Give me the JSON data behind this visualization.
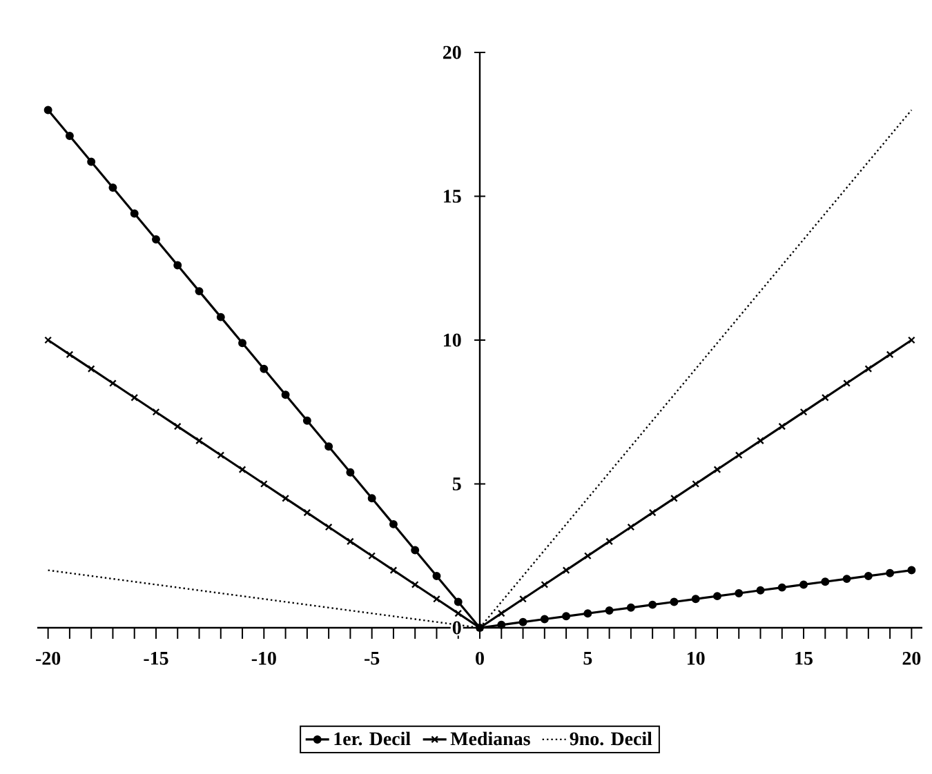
{
  "chart_data": {
    "type": "line",
    "x": [
      -20,
      -19,
      -18,
      -17,
      -16,
      -15,
      -14,
      -13,
      -12,
      -11,
      -10,
      -9,
      -8,
      -7,
      -6,
      -5,
      -4,
      -3,
      -2,
      -1,
      0,
      1,
      2,
      3,
      4,
      5,
      6,
      7,
      8,
      9,
      10,
      11,
      12,
      13,
      14,
      15,
      16,
      17,
      18,
      19,
      20
    ],
    "series": [
      {
        "name": "1er. Decil",
        "color": "#000000",
        "marker": "circle",
        "line_style": "solid",
        "values": [
          18,
          17.1,
          16.2,
          15.3,
          14.4,
          13.5,
          12.6,
          11.7,
          10.8,
          9.9,
          9,
          8.1,
          7.2,
          6.3,
          5.4,
          4.5,
          3.6,
          2.7,
          1.8,
          0.9,
          0,
          0.1,
          0.2,
          0.3,
          0.4,
          0.5,
          0.6,
          0.7,
          0.8,
          0.9,
          1,
          1.1,
          1.2,
          1.3,
          1.4,
          1.5,
          1.6,
          1.7,
          1.8,
          1.9,
          2
        ]
      },
      {
        "name": "Medianas",
        "color": "#000000",
        "marker": "cross",
        "line_style": "solid",
        "values": [
          10,
          9.5,
          9,
          8.5,
          8,
          7.5,
          7,
          6.5,
          6,
          5.5,
          5,
          4.5,
          4,
          3.5,
          3,
          2.5,
          2,
          1.5,
          1,
          0.5,
          0,
          0.5,
          1,
          1.5,
          2,
          2.5,
          3,
          3.5,
          4,
          4.5,
          5,
          5.5,
          6,
          6.5,
          7,
          7.5,
          8,
          8.5,
          9,
          9.5,
          10
        ]
      },
      {
        "name": "9no. Decil",
        "color": "#000000",
        "marker": "none",
        "line_style": "dotted",
        "values": [
          2,
          1.9,
          1.8,
          1.7,
          1.6,
          1.5,
          1.4,
          1.3,
          1.2,
          1.1,
          1,
          0.9,
          0.8,
          0.7,
          0.6,
          0.5,
          0.4,
          0.3,
          0.2,
          0.1,
          0,
          0.9,
          1.8,
          2.7,
          3.6,
          4.5,
          5.4,
          6.3,
          7.2,
          8.1,
          9,
          9.9,
          10.8,
          11.7,
          12.6,
          13.5,
          14.4,
          15.3,
          16.2,
          17.1,
          18
        ]
      }
    ],
    "xlim": [
      -20.5,
      20.5
    ],
    "ylim": [
      0,
      20
    ],
    "xticks": [
      -20,
      {
        "value": -19,
        "label": null
      },
      {
        "value": -18,
        "label": null
      },
      {
        "value": -17,
        "label": null
      },
      {
        "value": -16,
        "label": null
      },
      -15,
      {
        "value": -14,
        "label": null
      },
      {
        "value": -13,
        "label": null
      },
      {
        "value": -12,
        "label": null
      },
      {
        "value": -11,
        "label": null
      },
      -10,
      {
        "value": -9,
        "label": null
      },
      {
        "value": -8,
        "label": null
      },
      {
        "value": -7,
        "label": null
      },
      {
        "value": -6,
        "label": null
      },
      -5,
      {
        "value": -4,
        "label": null
      },
      {
        "value": -3,
        "label": null
      },
      {
        "value": -2,
        "label": null
      },
      {
        "value": -1,
        "label": null
      },
      0,
      {
        "value": 1,
        "label": null
      },
      {
        "value": 2,
        "label": null
      },
      {
        "value": 3,
        "label": null
      },
      {
        "value": 4,
        "label": null
      },
      5,
      {
        "value": 6,
        "label": null
      },
      {
        "value": 7,
        "label": null
      },
      {
        "value": 8,
        "label": null
      },
      {
        "value": 9,
        "label": null
      },
      10,
      {
        "value": 11,
        "label": null
      },
      {
        "value": 12,
        "label": null
      },
      {
        "value": 13,
        "label": null
      },
      {
        "value": 14,
        "label": null
      },
      15,
      {
        "value": 16,
        "label": null
      },
      {
        "value": 17,
        "label": null
      },
      {
        "value": 18,
        "label": null
      },
      {
        "value": 19,
        "label": null
      },
      20
    ],
    "yticks": [
      0,
      5,
      10,
      15,
      20
    ],
    "grid": false,
    "legend": "bottom"
  }
}
